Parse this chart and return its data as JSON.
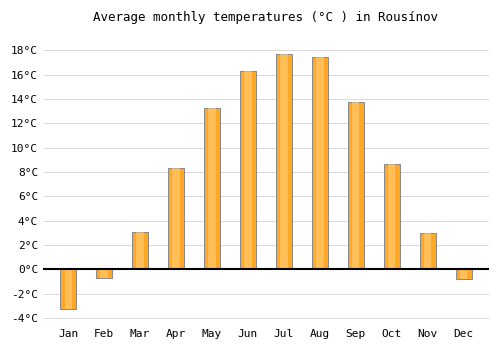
{
  "title": "Average monthly temperatures (°C ) in Rousínov",
  "months": [
    "Jan",
    "Feb",
    "Mar",
    "Apr",
    "May",
    "Jun",
    "Jul",
    "Aug",
    "Sep",
    "Oct",
    "Nov",
    "Dec"
  ],
  "values": [
    -3.3,
    -0.7,
    3.1,
    8.3,
    13.3,
    16.3,
    17.7,
    17.5,
    13.8,
    8.7,
    3.0,
    -0.8
  ],
  "bar_color": "#FFA726",
  "bar_edge_color": "#888888",
  "background_color": "#ffffff",
  "grid_color": "#cccccc",
  "ylim": [
    -4.5,
    19.5
  ],
  "yticks": [
    -4,
    -2,
    0,
    2,
    4,
    6,
    8,
    10,
    12,
    14,
    16,
    18
  ],
  "title_fontsize": 9,
  "tick_fontsize": 8,
  "zero_line_color": "#000000",
  "bar_width": 0.45
}
